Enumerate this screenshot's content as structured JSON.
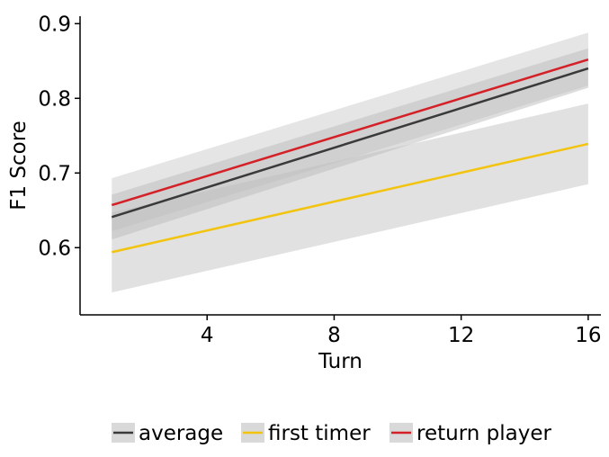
{
  "chart_data": {
    "type": "line",
    "title": "",
    "xlabel": "Turn",
    "ylabel": "F1 Score",
    "xlim": [
      0,
      16.4
    ],
    "ylim": [
      0.51,
      0.91
    ],
    "xticks": [
      4,
      8,
      12,
      16
    ],
    "xtick_labels": [
      "4",
      "8",
      "12",
      "16"
    ],
    "yticks": [
      0.6,
      0.7,
      0.8,
      0.9
    ],
    "ytick_labels": [
      "0.6",
      "0.7",
      "0.8",
      "0.9"
    ],
    "grid": false,
    "legend_position": "bottom",
    "x": [
      1,
      16
    ],
    "series": [
      {
        "name": "average",
        "color": "#3a3a3a",
        "values": [
          0.641,
          0.84
        ],
        "band_low": [
          0.611,
          0.814
        ],
        "band_high": [
          0.671,
          0.867
        ],
        "band_color": "#9e9e9e",
        "band_opacity": 0.35
      },
      {
        "name": "first timer",
        "color": "#f2c40f",
        "values": [
          0.594,
          0.739
        ],
        "band_low": [
          0.54,
          0.685
        ],
        "band_high": [
          0.647,
          0.793
        ],
        "band_color": "#bdbdbd",
        "band_opacity": 0.45
      },
      {
        "name": "return player",
        "color": "#d42027",
        "values": [
          0.657,
          0.852
        ],
        "band_low": [
          0.622,
          0.817
        ],
        "band_high": [
          0.693,
          0.888
        ],
        "band_color": "#bdbdbd",
        "band_opacity": 0.4
      }
    ]
  }
}
